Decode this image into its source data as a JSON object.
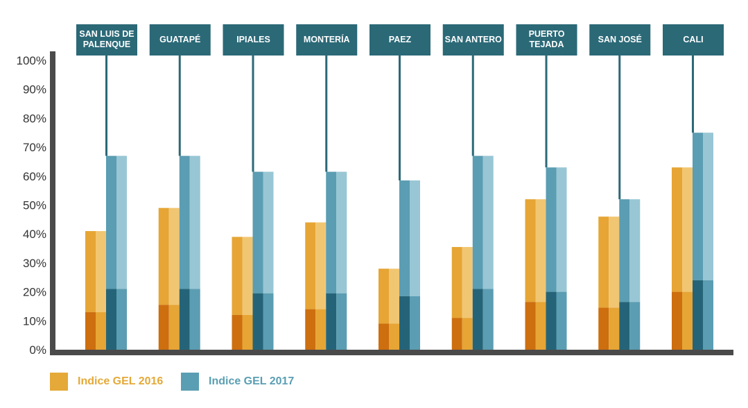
{
  "chart_data": {
    "type": "bar",
    "title": "",
    "xlabel": "",
    "ylabel": "",
    "ylim": [
      0,
      100
    ],
    "y_ticks": [
      "0%",
      "10%",
      "20%",
      "30%",
      "40%",
      "50%",
      "60%",
      "70%",
      "80%",
      "90%",
      "100%"
    ],
    "categories": [
      "SAN LUIS DE PALENQUE",
      "GUATAPÉ",
      "IPIALES",
      "MONTERÍA",
      "PAEZ",
      "SAN ANTERO",
      "PUERTO TEJADA",
      "SAN JOSÉ",
      "CALI"
    ],
    "series": [
      {
        "name": "Indice GEL 2016",
        "values": [
          41,
          49,
          39,
          44,
          28,
          35.5,
          52,
          46,
          63
        ],
        "base_segment": [
          13,
          15.5,
          12,
          14,
          9,
          11,
          16.5,
          14.5,
          20
        ]
      },
      {
        "name": "Indice GEL 2017",
        "values": [
          67,
          67,
          61.5,
          61.5,
          58.5,
          67,
          63,
          52,
          75
        ],
        "base_segment": [
          21,
          21,
          19.5,
          19.5,
          18.5,
          21,
          20,
          16.5,
          24
        ]
      }
    ],
    "legend_position": "bottom-left"
  },
  "colors": {
    "orange_dark": "#cd6e0f",
    "orange_mid": "#e6a534",
    "orange_light": "#f1c672",
    "teal_dark": "#256478",
    "teal_mid": "#5b9db2",
    "teal_light": "#98c6d4",
    "label_box": "#2b6977",
    "axis": "#4a4a4a",
    "tick_text": "#333333",
    "legend_2016": "#e4a938",
    "legend_2017": "#5a9eb3"
  },
  "legend": {
    "label_2016": "Indice GEL 2016",
    "label_2017": "Indice GEL 2017"
  }
}
